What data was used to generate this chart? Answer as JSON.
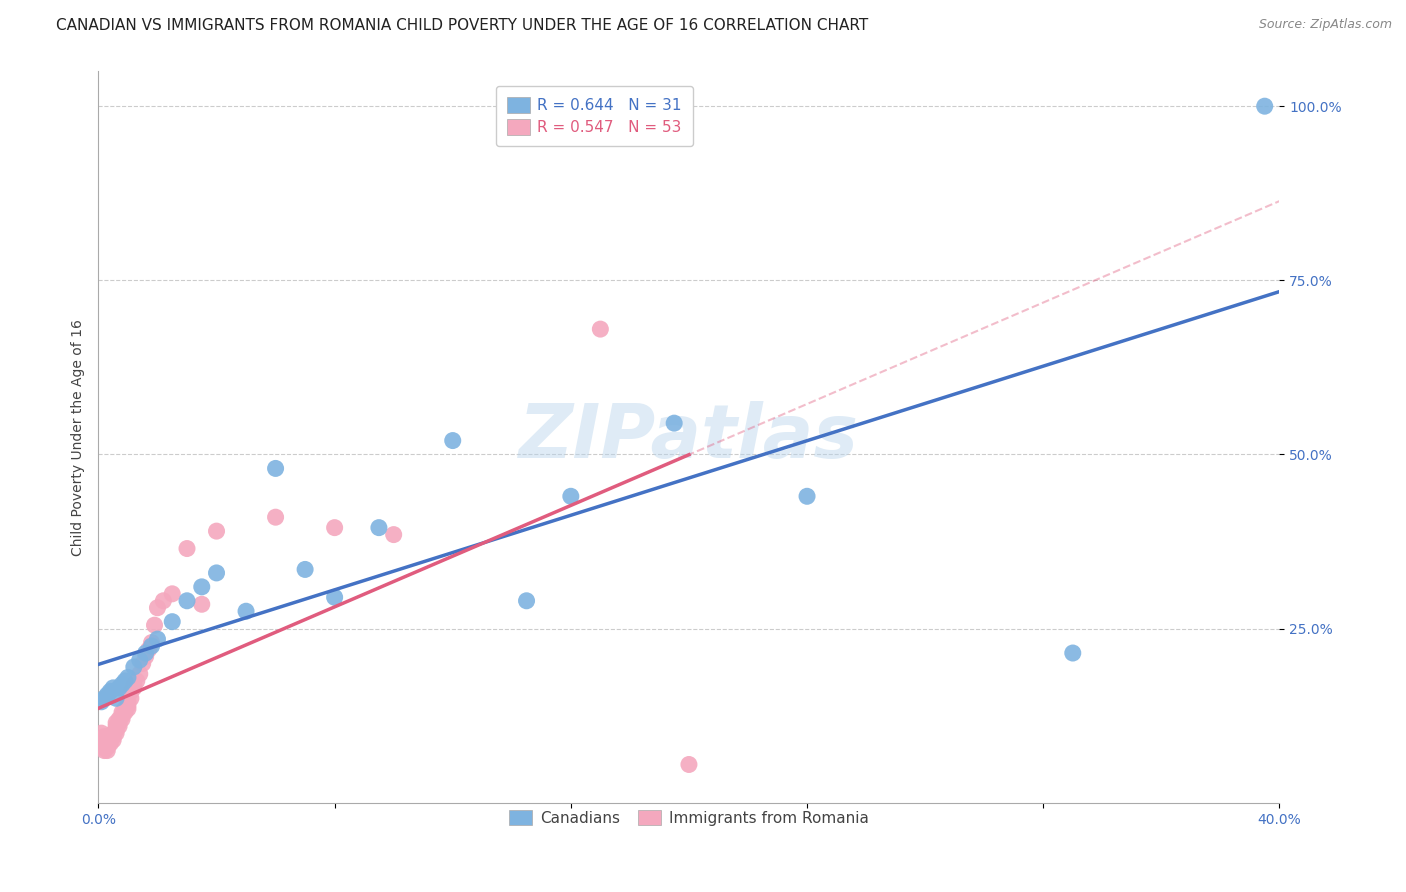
{
  "title": "CANADIAN VS IMMIGRANTS FROM ROMANIA CHILD POVERTY UNDER THE AGE OF 16 CORRELATION CHART",
  "source": "Source: ZipAtlas.com",
  "ylabel": "Child Poverty Under the Age of 16",
  "xlim": [
    0.0,
    0.4
  ],
  "ylim": [
    0.0,
    1.05
  ],
  "xticks": [
    0.0,
    0.08,
    0.16,
    0.24,
    0.32,
    0.4
  ],
  "xticklabels": [
    "0.0%",
    "",
    "",
    "",
    "",
    "40.0%"
  ],
  "yticks": [
    0.25,
    0.5,
    0.75,
    1.0
  ],
  "yticklabels": [
    "25.0%",
    "50.0%",
    "75.0%",
    "100.0%"
  ],
  "watermark": "ZIPatlas",
  "legend_r_canadian": "R = 0.644",
  "legend_n_canadian": "N = 31",
  "legend_r_romanian": "R = 0.547",
  "legend_n_romanian": "N = 53",
  "canadian_color": "#7EB3E0",
  "romanian_color": "#F4A8BE",
  "canadian_line_color": "#4472C4",
  "romanian_line_color": "#E05C7E",
  "grid_color": "#CCCCCC",
  "canadians_x": [
    0.001,
    0.002,
    0.003,
    0.004,
    0.005,
    0.006,
    0.007,
    0.008,
    0.009,
    0.01,
    0.012,
    0.014,
    0.016,
    0.018,
    0.02,
    0.025,
    0.03,
    0.035,
    0.04,
    0.05,
    0.06,
    0.07,
    0.08,
    0.095,
    0.12,
    0.145,
    0.16,
    0.195,
    0.24,
    0.33,
    0.395
  ],
  "canadians_y": [
    0.145,
    0.15,
    0.155,
    0.16,
    0.165,
    0.15,
    0.165,
    0.17,
    0.175,
    0.18,
    0.195,
    0.205,
    0.215,
    0.225,
    0.235,
    0.26,
    0.29,
    0.31,
    0.33,
    0.275,
    0.48,
    0.335,
    0.295,
    0.395,
    0.52,
    0.29,
    0.44,
    0.545,
    0.44,
    0.215,
    1.0
  ],
  "romanians_x": [
    0.001,
    0.001,
    0.001,
    0.002,
    0.002,
    0.002,
    0.003,
    0.003,
    0.003,
    0.003,
    0.004,
    0.004,
    0.004,
    0.005,
    0.005,
    0.005,
    0.006,
    0.006,
    0.006,
    0.006,
    0.007,
    0.007,
    0.007,
    0.008,
    0.008,
    0.008,
    0.009,
    0.009,
    0.01,
    0.01,
    0.01,
    0.011,
    0.011,
    0.012,
    0.012,
    0.013,
    0.014,
    0.015,
    0.016,
    0.017,
    0.018,
    0.019,
    0.02,
    0.022,
    0.025,
    0.03,
    0.035,
    0.04,
    0.06,
    0.08,
    0.1,
    0.17,
    0.2
  ],
  "romanians_y": [
    0.1,
    0.09,
    0.08,
    0.095,
    0.085,
    0.075,
    0.09,
    0.085,
    0.08,
    0.075,
    0.095,
    0.09,
    0.085,
    0.1,
    0.095,
    0.09,
    0.115,
    0.11,
    0.105,
    0.1,
    0.12,
    0.115,
    0.11,
    0.13,
    0.125,
    0.12,
    0.135,
    0.13,
    0.14,
    0.135,
    0.145,
    0.15,
    0.16,
    0.17,
    0.165,
    0.175,
    0.185,
    0.2,
    0.21,
    0.22,
    0.23,
    0.255,
    0.28,
    0.29,
    0.3,
    0.365,
    0.285,
    0.39,
    0.41,
    0.395,
    0.385,
    0.68,
    0.055
  ],
  "title_fontsize": 11,
  "axis_label_fontsize": 10,
  "tick_fontsize": 10,
  "legend_fontsize": 11,
  "background_color": "#FFFFFF"
}
